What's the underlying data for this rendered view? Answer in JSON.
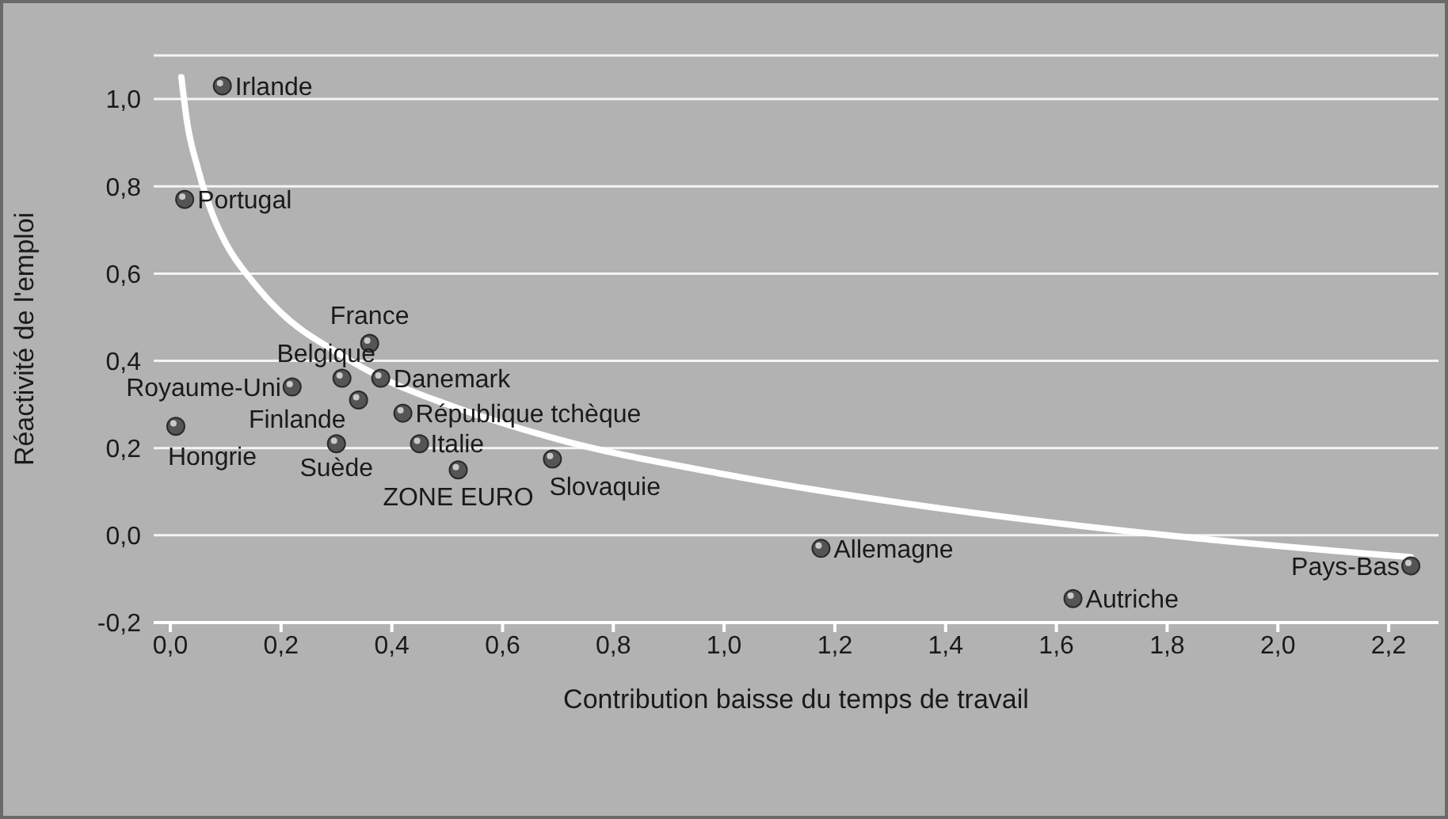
{
  "chart_data": {
    "type": "scatter",
    "xlabel": "Contribution baisse du temps de travail",
    "ylabel": "Réactivité de l'emploi",
    "xlim": [
      -0.03,
      2.29
    ],
    "xticks": [
      {
        "value": 0,
        "label": "0,0"
      },
      {
        "value": 0.2,
        "label": "0,2"
      },
      {
        "value": 0.4,
        "label": "0,4"
      },
      {
        "value": 0.6,
        "label": "0,6"
      },
      {
        "value": 0.8,
        "label": "0,8"
      },
      {
        "value": 1,
        "label": "1,0"
      },
      {
        "value": 1.2,
        "label": "1,2"
      },
      {
        "value": 1.4,
        "label": "1,4"
      },
      {
        "value": 1.6,
        "label": "1,6"
      },
      {
        "value": 1.8,
        "label": "1,8"
      },
      {
        "value": 2,
        "label": "2,0"
      },
      {
        "value": 2.2,
        "label": "2,2"
      }
    ],
    "ylim": [
      -0.2,
      1.1
    ],
    "yticks": [
      {
        "value": -0.2,
        "label": "-0,2"
      },
      {
        "value": 0,
        "label": "0,0"
      },
      {
        "value": 0.2,
        "label": "0,2"
      },
      {
        "value": 0.4,
        "label": "0,4"
      },
      {
        "value": 0.6,
        "label": "0,6"
      },
      {
        "value": 0.8,
        "label": "0,8"
      },
      {
        "value": 1,
        "label": "1,0"
      },
      {
        "value": 1.1,
        "label": null
      }
    ],
    "grid": "y",
    "series": [
      {
        "type": "line",
        "marker": "none",
        "color": "#ffffff",
        "x": [
          0.02,
          0.03,
          0.05,
          0.075,
          0.1,
          0.15,
          0.2,
          0.3,
          0.4,
          0.5,
          0.7,
          1.0,
          1.4,
          1.8,
          2.24
        ],
        "values": [
          1.05,
          0.95,
          0.84,
          0.74,
          0.67,
          0.58,
          0.51,
          0.42,
          0.35,
          0.3,
          0.22,
          0.14,
          0.06,
          0.0,
          -0.05
        ]
      },
      {
        "marker": "circle",
        "color": "#555555",
        "x": [
          0.094,
          0.026,
          0.36,
          0.31,
          0.38,
          0.22,
          0.34,
          0.42,
          0.01,
          0.3,
          0.45,
          0.52,
          0.69,
          1.175,
          1.63,
          2.24
        ],
        "values": [
          1.03,
          0.77,
          0.44,
          0.36,
          0.36,
          0.34,
          0.31,
          0.28,
          0.25,
          0.21,
          0.21,
          0.15,
          0.175,
          -0.03,
          -0.145,
          -0.07
        ]
      }
    ],
    "annotations": [
      {
        "text": "Irlande",
        "x": 0.094,
        "y": 1.03
      },
      {
        "text": "Portugal",
        "x": 0.026,
        "y": 0.77
      },
      {
        "text": "France",
        "x": 0.36,
        "y": 0.44
      },
      {
        "text": "Belgique",
        "x": 0.31,
        "y": 0.36
      },
      {
        "text": "Danemark",
        "x": 0.38,
        "y": 0.36
      },
      {
        "text": "Royaume-Uni",
        "x": 0.22,
        "y": 0.34
      },
      {
        "text": "Finlande",
        "x": 0.34,
        "y": 0.31
      },
      {
        "text": "République tchèque",
        "x": 0.42,
        "y": 0.28
      },
      {
        "text": "Hongrie",
        "x": 0.01,
        "y": 0.25
      },
      {
        "text": "Suède",
        "x": 0.3,
        "y": 0.21
      },
      {
        "text": "Italie",
        "x": 0.45,
        "y": 0.21
      },
      {
        "text": "ZONE EURO",
        "x": 0.52,
        "y": 0.15
      },
      {
        "text": "Slovaquie",
        "x": 0.69,
        "y": 0.175
      },
      {
        "text": "Allemagne",
        "x": 1.175,
        "y": -0.03
      },
      {
        "text": "Autriche",
        "x": 1.63,
        "y": -0.145
      },
      {
        "text": "Pays-Bas",
        "x": 2.24,
        "y": -0.07
      }
    ]
  }
}
